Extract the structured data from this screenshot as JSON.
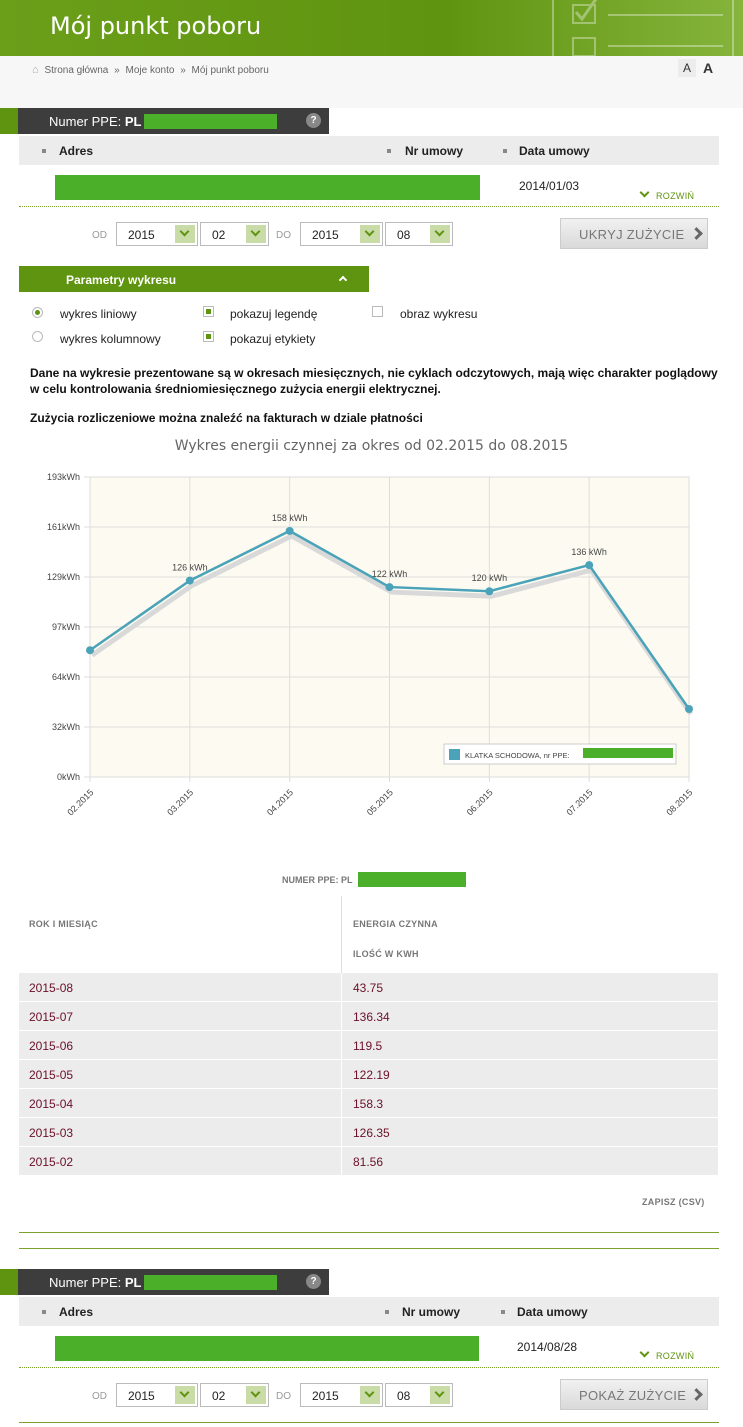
{
  "header": {
    "title": "Mój punkt poboru"
  },
  "breadcrumb": {
    "home": "Strona główna",
    "sep": "»",
    "account": "Moje konto",
    "current": "Mój punkt poboru"
  },
  "font_size": {
    "small": "A",
    "large": "A"
  },
  "colors": {
    "brand_green": "#5f9410",
    "dark_header": "#3d3d3d",
    "series": "#4aa3b8",
    "amount_text": "#6b0f2a"
  },
  "section1": {
    "ppe_label": "Numer PPE:",
    "ppe_prefix": "PL",
    "help": "?",
    "col_address": "Adres",
    "col_contract": "Nr umowy",
    "col_date": "Data umowy",
    "contract_date": "2014/01/03",
    "expand": "ROZWIŃ",
    "from_label": "OD",
    "to_label": "DO",
    "from_year": "2015",
    "from_month": "02",
    "to_year": "2015",
    "to_month": "08",
    "toggle_button": "UKRYJ ZUŻYCIE"
  },
  "params": {
    "title": "Parametry wykresu",
    "line_chart": "wykres liniowy",
    "bar_chart": "wykres kolumnowy",
    "show_legend": "pokazuj legendę",
    "show_labels": "pokazuj etykiety",
    "chart_image": "obraz wykresu"
  },
  "notes": {
    "line1": "Dane na wykresie prezentowane są w okresach miesięcznych, nie cyklach odczytowych, mają więc charakter poglądowy",
    "line2": "w celu kontrolowania średniomiesięcznego zużycia energii elektrycznej.",
    "line3": "Zużycia rozliczeniowe można znaleźć na fakturach w dziale płatności"
  },
  "chart_data": {
    "type": "line",
    "title": "Wykres energii czynnej za okres od 02.2015 do 08.2015",
    "categories": [
      "02.2015",
      "03.2015",
      "04.2015",
      "05.2015",
      "06.2015",
      "07.2015",
      "08.2015"
    ],
    "series": [
      {
        "name": "KLATKA SCHODOWA, nr PPE:",
        "values": [
          81.56,
          126.35,
          158.3,
          122.19,
          119.5,
          136.34,
          43.75
        ]
      }
    ],
    "data_labels": [
      "",
      "126 kWh",
      "158 kWh",
      "122 kWh",
      "120 kWh",
      "136 kWh",
      ""
    ],
    "y_ticks": [
      "0kWh",
      "32kWh",
      "64kWh",
      "97kWh",
      "129kWh",
      "161kWh",
      "193kWh"
    ],
    "ylim": [
      0,
      193
    ],
    "grid": true,
    "legend": "bottom-right"
  },
  "table": {
    "ppe_label": "NUMER PPE: PL",
    "col_month": "ROK I MIESIĄC",
    "col_energy": "ENERGIA CZYNNA",
    "col_unit": "ILOŚĆ W KWH",
    "rows": [
      {
        "month": "2015-08",
        "value": "43.75"
      },
      {
        "month": "2015-07",
        "value": "136.34"
      },
      {
        "month": "2015-06",
        "value": "119.5"
      },
      {
        "month": "2015-05",
        "value": "122.19"
      },
      {
        "month": "2015-04",
        "value": "158.3"
      },
      {
        "month": "2015-03",
        "value": "126.35"
      },
      {
        "month": "2015-02",
        "value": "81.56"
      }
    ],
    "save_csv": "ZAPISZ (CSV)"
  },
  "section2": {
    "ppe_label": "Numer PPE:",
    "ppe_prefix": "PL",
    "help": "?",
    "col_address": "Adres",
    "col_contract": "Nr umowy",
    "col_date": "Data umowy",
    "contract_date": "2014/08/28",
    "expand": "ROZWIŃ",
    "from_label": "OD",
    "to_label": "DO",
    "from_year": "2015",
    "from_month": "02",
    "to_year": "2015",
    "to_month": "08",
    "toggle_button": "POKAŻ ZUŻYCIE"
  }
}
